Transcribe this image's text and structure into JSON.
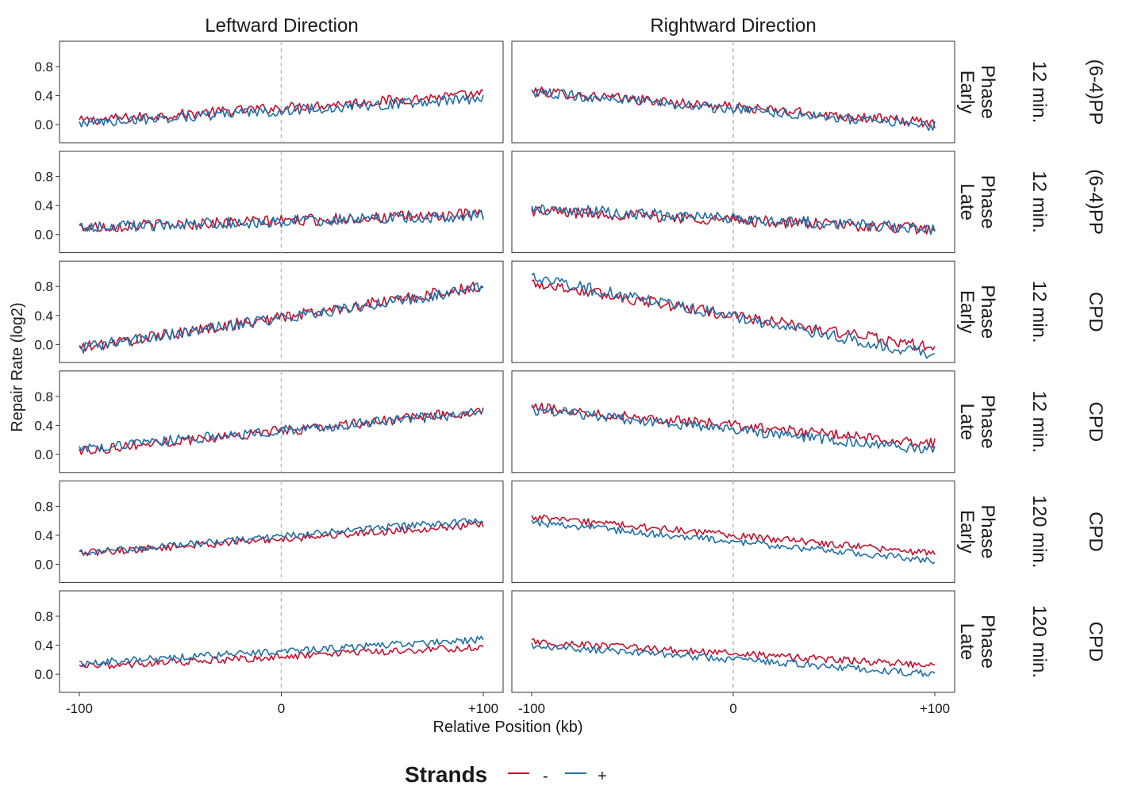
{
  "chart_data": {
    "type": "line",
    "column_titles": [
      "Leftward Direction",
      "Rightward Direction"
    ],
    "xlabel": "Relative Position (kb)",
    "ylabel": "Repair Rate (log2)",
    "x_ticks": [
      "-100",
      "0",
      "+100"
    ],
    "x_range": [
      -100,
      100
    ],
    "y_ticks": [
      "0.0",
      "0.4",
      "0.8"
    ],
    "y_range": [
      -0.25,
      1.15
    ],
    "legend": {
      "title": "Strands",
      "position": "bottom",
      "entries": [
        "-",
        "+"
      ]
    },
    "colors": {
      "minus": "#c8102e",
      "plus": "#1f6fa8"
    },
    "row_strips": [
      {
        "phase": "Early\nPhase",
        "time": "12 min.",
        "damage": "(6-4)PP"
      },
      {
        "phase": "Late\nPhase",
        "time": "12 min.",
        "damage": "(6-4)PP"
      },
      {
        "phase": "Early\nPhase",
        "time": "12 min.",
        "damage": "CPD"
      },
      {
        "phase": "Late\nPhase",
        "time": "12 min.",
        "damage": "CPD"
      },
      {
        "phase": "Early\nPhase",
        "time": "120 min.",
        "damage": "CPD"
      },
      {
        "phase": "Late\nPhase",
        "time": "120 min.",
        "damage": "CPD"
      }
    ],
    "panels": [
      {
        "row": 0,
        "col": 0,
        "series": [
          {
            "name": "-",
            "start": 0.05,
            "end": 0.42,
            "noise": 0.07
          },
          {
            "name": "+",
            "start": 0.02,
            "end": 0.36,
            "noise": 0.07
          }
        ]
      },
      {
        "row": 0,
        "col": 1,
        "series": [
          {
            "name": "-",
            "start": 0.46,
            "end": 0.02,
            "noise": 0.07
          },
          {
            "name": "+",
            "start": 0.45,
            "end": -0.02,
            "noise": 0.07
          }
        ]
      },
      {
        "row": 1,
        "col": 0,
        "series": [
          {
            "name": "-",
            "start": 0.1,
            "end": 0.28,
            "noise": 0.08
          },
          {
            "name": "+",
            "start": 0.1,
            "end": 0.26,
            "noise": 0.08
          }
        ]
      },
      {
        "row": 1,
        "col": 1,
        "series": [
          {
            "name": "-",
            "start": 0.33,
            "end": 0.07,
            "noise": 0.08
          },
          {
            "name": "+",
            "start": 0.36,
            "end": 0.08,
            "noise": 0.08
          }
        ]
      },
      {
        "row": 2,
        "col": 0,
        "series": [
          {
            "name": "-",
            "start": -0.05,
            "end": 0.8,
            "noise": 0.08
          },
          {
            "name": "+",
            "start": -0.05,
            "end": 0.78,
            "noise": 0.08
          }
        ]
      },
      {
        "row": 2,
        "col": 1,
        "series": [
          {
            "name": "-",
            "start": 0.85,
            "end": -0.05,
            "noise": 0.08
          },
          {
            "name": "+",
            "start": 0.92,
            "end": -0.15,
            "noise": 0.08
          }
        ]
      },
      {
        "row": 3,
        "col": 0,
        "series": [
          {
            "name": "-",
            "start": 0.05,
            "end": 0.6,
            "noise": 0.07
          },
          {
            "name": "+",
            "start": 0.08,
            "end": 0.58,
            "noise": 0.07
          }
        ]
      },
      {
        "row": 3,
        "col": 1,
        "series": [
          {
            "name": "-",
            "start": 0.65,
            "end": 0.15,
            "noise": 0.07
          },
          {
            "name": "+",
            "start": 0.62,
            "end": 0.05,
            "noise": 0.07
          }
        ]
      },
      {
        "row": 4,
        "col": 0,
        "series": [
          {
            "name": "-",
            "start": 0.15,
            "end": 0.55,
            "noise": 0.05
          },
          {
            "name": "+",
            "start": 0.15,
            "end": 0.62,
            "noise": 0.05
          }
        ]
      },
      {
        "row": 4,
        "col": 1,
        "series": [
          {
            "name": "-",
            "start": 0.65,
            "end": 0.15,
            "noise": 0.05
          },
          {
            "name": "+",
            "start": 0.58,
            "end": 0.05,
            "noise": 0.05
          }
        ]
      },
      {
        "row": 5,
        "col": 0,
        "series": [
          {
            "name": "-",
            "start": 0.1,
            "end": 0.38,
            "noise": 0.05
          },
          {
            "name": "+",
            "start": 0.15,
            "end": 0.48,
            "noise": 0.05
          }
        ]
      },
      {
        "row": 5,
        "col": 1,
        "series": [
          {
            "name": "-",
            "start": 0.45,
            "end": 0.12,
            "noise": 0.05
          },
          {
            "name": "+",
            "start": 0.4,
            "end": 0.0,
            "noise": 0.05
          }
        ]
      }
    ]
  }
}
